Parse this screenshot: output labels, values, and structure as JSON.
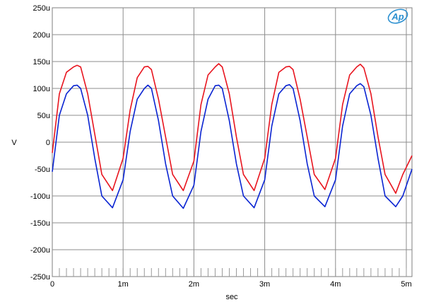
{
  "chart_data": {
    "type": "line",
    "xlabel": "sec",
    "ylabel": "V",
    "xlim": [
      0,
      0.00508
    ],
    "ylim": [
      -0.00025,
      0.00025
    ],
    "grid": true,
    "x_ticks": [
      {
        "value": 0,
        "label": "0"
      },
      {
        "value": 0.001,
        "label": "1m"
      },
      {
        "value": 0.002,
        "label": "2m"
      },
      {
        "value": 0.003,
        "label": "3m"
      },
      {
        "value": 0.004,
        "label": "4m"
      },
      {
        "value": 0.005,
        "label": "5m"
      }
    ],
    "y_ticks": [
      {
        "value": 0.00025,
        "label": "250u"
      },
      {
        "value": 0.0002,
        "label": "200u"
      },
      {
        "value": 0.00015,
        "label": "150u"
      },
      {
        "value": 0.0001,
        "label": "100u"
      },
      {
        "value": 5e-05,
        "label": "50u"
      },
      {
        "value": 0,
        "label": "0"
      },
      {
        "value": -5e-05,
        "label": "-50u"
      },
      {
        "value": -0.0001,
        "label": "-100u"
      },
      {
        "value": -0.00015,
        "label": "-150u"
      },
      {
        "value": -0.0002,
        "label": "-200u"
      },
      {
        "value": -0.00025,
        "label": "-250u"
      }
    ],
    "series": [
      {
        "color": "#e8141e",
        "x": [
          0,
          0.0001,
          0.0002,
          0.0003,
          0.00035,
          0.0004,
          0.0005,
          0.0006,
          0.0007,
          0.00085,
          0.001,
          0.0011,
          0.0012,
          0.0013,
          0.00135,
          0.0014,
          0.0015,
          0.0016,
          0.0017,
          0.00185,
          0.002,
          0.0021,
          0.0022,
          0.0023,
          0.00235,
          0.0024,
          0.0025,
          0.0026,
          0.0027,
          0.00285,
          0.003,
          0.0031,
          0.0032,
          0.0033,
          0.00335,
          0.0034,
          0.0035,
          0.0036,
          0.0037,
          0.00385,
          0.004,
          0.0041,
          0.0042,
          0.0043,
          0.00435,
          0.0044,
          0.0045,
          0.0046,
          0.0047,
          0.00485,
          0.00495,
          0.00508
        ],
        "y": [
          -2e-05,
          9e-05,
          0.00013,
          0.00014,
          0.000143,
          0.00014,
          9e-05,
          1.5e-05,
          -6e-05,
          -9e-05,
          -3e-05,
          6e-05,
          0.00012,
          0.00014,
          0.000141,
          0.000135,
          8e-05,
          1e-05,
          -6e-05,
          -9e-05,
          -3.5e-05,
          7e-05,
          0.000125,
          0.00014,
          0.000146,
          0.00014,
          9e-05,
          1e-05,
          -6e-05,
          -9e-05,
          -3e-05,
          7e-05,
          0.00013,
          0.00014,
          0.000141,
          0.000135,
          8e-05,
          1e-05,
          -6e-05,
          -8.8e-05,
          -3e-05,
          7e-05,
          0.000125,
          0.00014,
          0.000145,
          0.000138,
          9e-05,
          1e-05,
          -6e-05,
          -9.5e-05,
          -6e-05,
          -2.5e-05
        ]
      },
      {
        "color": "#0a24d2",
        "x": [
          0,
          0.0001,
          0.0002,
          0.0003,
          0.00035,
          0.0004,
          0.0005,
          0.0006,
          0.0007,
          0.00085,
          0.001,
          0.0011,
          0.0012,
          0.0013,
          0.00135,
          0.0014,
          0.0015,
          0.0016,
          0.0017,
          0.00185,
          0.002,
          0.0021,
          0.0022,
          0.0023,
          0.00235,
          0.0024,
          0.0025,
          0.0026,
          0.0027,
          0.00285,
          0.003,
          0.0031,
          0.0032,
          0.0033,
          0.00335,
          0.0034,
          0.0035,
          0.0036,
          0.0037,
          0.00385,
          0.004,
          0.0041,
          0.0042,
          0.0043,
          0.00435,
          0.0044,
          0.0045,
          0.0046,
          0.0047,
          0.00485,
          0.00495,
          0.00508
        ],
        "y": [
          -5.5e-05,
          5e-05,
          9e-05,
          0.000105,
          0.000106,
          0.0001,
          5e-05,
          -3e-05,
          -0.0001,
          -0.000122,
          -7e-05,
          2e-05,
          8e-05,
          0.0001,
          0.000106,
          0.0001,
          4e-05,
          -4e-05,
          -0.0001,
          -0.000123,
          -8e-05,
          2e-05,
          8e-05,
          0.000105,
          0.000106,
          0.0001,
          4e-05,
          -4e-05,
          -0.0001,
          -0.000122,
          -7e-05,
          3e-05,
          9e-05,
          0.000105,
          0.000107,
          0.0001,
          4e-05,
          -4e-05,
          -0.0001,
          -0.00012,
          -7e-05,
          3e-05,
          9e-05,
          0.000105,
          0.000109,
          0.000103,
          5e-05,
          -3e-05,
          -0.0001,
          -0.00012,
          -0.0001,
          -5e-05
        ]
      }
    ]
  },
  "logo_text": "Ap"
}
